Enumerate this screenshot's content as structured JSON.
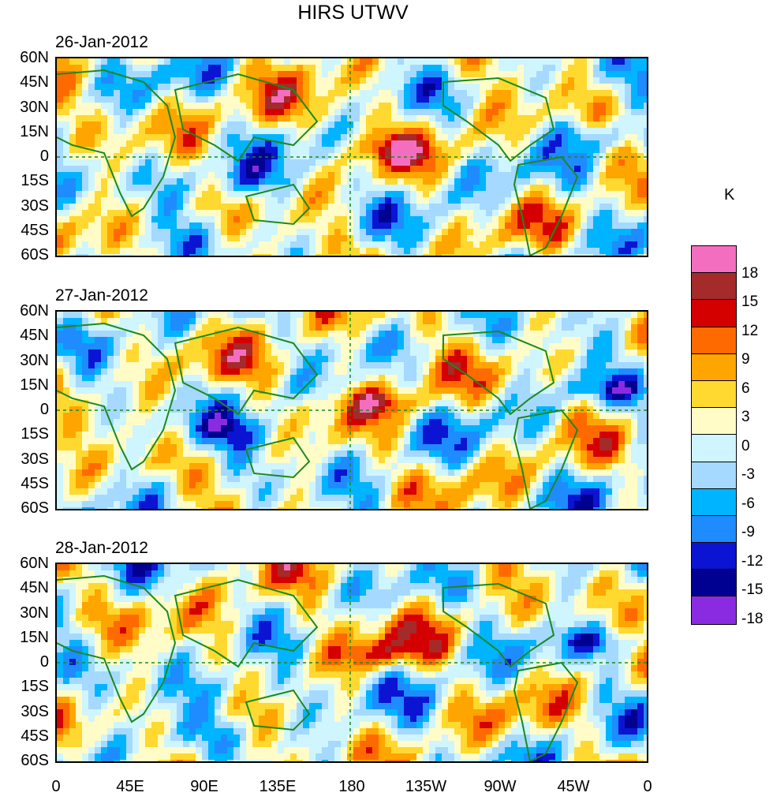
{
  "title": "HIRS UTWV",
  "panels": [
    {
      "date": "26-Jan-2012"
    },
    {
      "date": "27-Jan-2012"
    },
    {
      "date": "28-Jan-2012"
    }
  ],
  "lat_labels": [
    "60N",
    "45N",
    "30N",
    "15N",
    "0",
    "15S",
    "30S",
    "45S",
    "60S"
  ],
  "lon_labels": [
    "0",
    "45E",
    "90E",
    "135E",
    "180",
    "135W",
    "90W",
    "45W",
    "0"
  ],
  "colorbar": {
    "unit": "K",
    "levels": [
      "18",
      "15",
      "12",
      "9",
      "6",
      "3",
      "0",
      "-3",
      "-6",
      "-9",
      "-12",
      "-15",
      "-18"
    ],
    "colors": [
      "#f46ec0",
      "#a52a2a",
      "#d40000",
      "#ff6a00",
      "#ffa500",
      "#ffd92f",
      "#fffcc8",
      "#cff5ff",
      "#a6d9ff",
      "#00b4ff",
      "#1e8cff",
      "#0a14d2",
      "#000091",
      "#8a2be2"
    ]
  },
  "colors": {
    "coast": "#1a8a1a",
    "background": "#ffffff"
  }
}
